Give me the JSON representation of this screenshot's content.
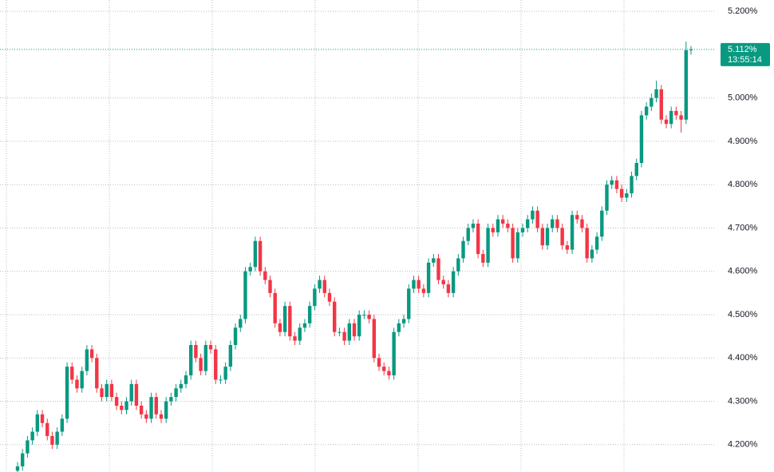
{
  "chart_data": {
    "type": "candlestick",
    "open": [
      4.14,
      4.15,
      4.18,
      4.21,
      4.23,
      4.27,
      4.25,
      4.22,
      4.2,
      4.23,
      4.26,
      4.38,
      4.35,
      4.33,
      4.37,
      4.42,
      4.4,
      4.33,
      4.31,
      4.34,
      4.31,
      4.29,
      4.28,
      4.3,
      4.34,
      4.29,
      4.27,
      4.26,
      4.31,
      4.27,
      4.26,
      4.3,
      4.31,
      4.33,
      4.34,
      4.36,
      4.43,
      4.4,
      4.37,
      4.43,
      4.42,
      4.35,
      4.35,
      4.38,
      4.43,
      4.47,
      4.49,
      4.6,
      4.61,
      4.67,
      4.6,
      4.58,
      4.55,
      4.48,
      4.46,
      4.52,
      4.45,
      4.44,
      4.47,
      4.48,
      4.52,
      4.56,
      4.58,
      4.55,
      4.53,
      4.46,
      4.46,
      4.44,
      4.48,
      4.45,
      4.5,
      4.5,
      4.49,
      4.4,
      4.38,
      4.37,
      4.36,
      4.46,
      4.48,
      4.49,
      4.56,
      4.58,
      4.56,
      4.55,
      4.62,
      4.63,
      4.58,
      4.57,
      4.55,
      4.6,
      4.63,
      4.67,
      4.7,
      4.71,
      4.64,
      4.62,
      4.7,
      4.69,
      4.72,
      4.71,
      4.7,
      4.63,
      4.69,
      4.7,
      4.72,
      4.74,
      4.7,
      4.66,
      4.7,
      4.72,
      4.7,
      4.66,
      4.65,
      4.73,
      4.72,
      4.7,
      4.63,
      4.65,
      4.68,
      4.74,
      4.8,
      4.81,
      4.79,
      4.77,
      4.78,
      4.82,
      4.85,
      4.96,
      4.98,
      5.0,
      5.02,
      4.95,
      4.94,
      4.97,
      4.96,
      4.95,
      5.11
    ],
    "high": [
      4.16,
      4.19,
      4.22,
      4.24,
      4.28,
      4.28,
      4.26,
      4.23,
      4.24,
      4.27,
      4.39,
      4.39,
      4.36,
      4.38,
      4.43,
      4.43,
      4.41,
      4.34,
      4.35,
      4.35,
      4.32,
      4.3,
      4.31,
      4.35,
      4.35,
      4.3,
      4.28,
      4.32,
      4.32,
      4.28,
      4.31,
      4.32,
      4.34,
      4.35,
      4.37,
      4.44,
      4.44,
      4.41,
      4.44,
      4.44,
      4.43,
      4.36,
      4.39,
      4.44,
      4.48,
      4.5,
      4.61,
      4.62,
      4.68,
      4.68,
      4.61,
      4.59,
      4.56,
      4.49,
      4.53,
      4.53,
      4.46,
      4.48,
      4.49,
      4.53,
      4.57,
      4.59,
      4.59,
      4.56,
      4.54,
      4.47,
      4.47,
      4.49,
      4.49,
      4.51,
      4.51,
      4.51,
      4.5,
      4.41,
      4.39,
      4.38,
      4.47,
      4.49,
      4.5,
      4.57,
      4.59,
      4.59,
      4.57,
      4.63,
      4.64,
      4.64,
      4.59,
      4.58,
      4.61,
      4.64,
      4.68,
      4.71,
      4.72,
      4.72,
      4.65,
      4.71,
      4.71,
      4.73,
      4.73,
      4.72,
      4.71,
      4.7,
      4.71,
      4.73,
      4.75,
      4.75,
      4.71,
      4.71,
      4.73,
      4.73,
      4.71,
      4.67,
      4.74,
      4.74,
      4.73,
      4.71,
      4.66,
      4.69,
      4.75,
      4.81,
      4.82,
      4.82,
      4.8,
      4.79,
      4.83,
      4.86,
      4.97,
      4.99,
      5.01,
      5.04,
      5.03,
      4.96,
      4.98,
      4.98,
      4.97,
      5.13,
      5.12
    ],
    "low": [
      4.13,
      4.14,
      4.17,
      4.2,
      4.22,
      4.24,
      4.21,
      4.19,
      4.19,
      4.22,
      4.25,
      4.34,
      4.32,
      4.32,
      4.36,
      4.39,
      4.32,
      4.3,
      4.3,
      4.3,
      4.28,
      4.27,
      4.27,
      4.29,
      4.28,
      4.26,
      4.25,
      4.25,
      4.26,
      4.25,
      4.25,
      4.29,
      4.3,
      4.32,
      4.33,
      4.35,
      4.39,
      4.36,
      4.36,
      4.41,
      4.34,
      4.34,
      4.34,
      4.37,
      4.42,
      4.46,
      4.48,
      4.59,
      4.6,
      4.59,
      4.57,
      4.54,
      4.47,
      4.45,
      4.45,
      4.44,
      4.43,
      4.43,
      4.46,
      4.47,
      4.51,
      4.55,
      4.54,
      4.52,
      4.45,
      4.45,
      4.43,
      4.43,
      4.44,
      4.44,
      4.49,
      4.48,
      4.39,
      4.37,
      4.36,
      4.35,
      4.35,
      4.45,
      4.47,
      4.48,
      4.55,
      4.55,
      4.54,
      4.54,
      4.61,
      4.57,
      4.56,
      4.54,
      4.54,
      4.59,
      4.62,
      4.66,
      4.69,
      4.63,
      4.61,
      4.61,
      4.68,
      4.68,
      4.7,
      4.69,
      4.62,
      4.62,
      4.68,
      4.69,
      4.71,
      4.69,
      4.65,
      4.65,
      4.69,
      4.69,
      4.65,
      4.64,
      4.64,
      4.71,
      4.69,
      4.62,
      4.62,
      4.64,
      4.67,
      4.73,
      4.79,
      4.78,
      4.76,
      4.76,
      4.77,
      4.81,
      4.84,
      4.95,
      4.97,
      4.99,
      4.94,
      4.93,
      4.93,
      4.95,
      4.92,
      4.94,
      5.1
    ],
    "close": [
      4.15,
      4.18,
      4.21,
      4.23,
      4.27,
      4.25,
      4.22,
      4.2,
      4.23,
      4.26,
      4.38,
      4.35,
      4.33,
      4.37,
      4.42,
      4.4,
      4.33,
      4.31,
      4.34,
      4.31,
      4.29,
      4.28,
      4.3,
      4.34,
      4.29,
      4.27,
      4.26,
      4.31,
      4.27,
      4.26,
      4.3,
      4.31,
      4.33,
      4.34,
      4.36,
      4.43,
      4.4,
      4.37,
      4.43,
      4.42,
      4.35,
      4.35,
      4.38,
      4.43,
      4.47,
      4.49,
      4.6,
      4.61,
      4.67,
      4.6,
      4.58,
      4.55,
      4.48,
      4.46,
      4.52,
      4.45,
      4.44,
      4.47,
      4.48,
      4.52,
      4.56,
      4.58,
      4.55,
      4.53,
      4.46,
      4.46,
      4.44,
      4.48,
      4.45,
      4.5,
      4.5,
      4.49,
      4.4,
      4.38,
      4.37,
      4.36,
      4.46,
      4.48,
      4.49,
      4.56,
      4.58,
      4.56,
      4.55,
      4.62,
      4.63,
      4.58,
      4.57,
      4.55,
      4.6,
      4.63,
      4.67,
      4.7,
      4.71,
      4.64,
      4.62,
      4.7,
      4.69,
      4.72,
      4.71,
      4.7,
      4.63,
      4.69,
      4.7,
      4.72,
      4.74,
      4.7,
      4.66,
      4.7,
      4.72,
      4.7,
      4.66,
      4.65,
      4.73,
      4.72,
      4.7,
      4.63,
      4.65,
      4.68,
      4.74,
      4.8,
      4.81,
      4.79,
      4.77,
      4.78,
      4.82,
      4.85,
      4.96,
      4.98,
      5.0,
      5.02,
      4.95,
      4.94,
      4.97,
      4.96,
      4.95,
      5.11,
      5.112
    ],
    "up_color": "#089981",
    "down_color": "#f23645",
    "ylim": [
      4.137,
      5.226
    ],
    "yticks": [
      {
        "value": 4.2,
        "label": "4.200%"
      },
      {
        "value": 4.3,
        "label": "4.300%"
      },
      {
        "value": 4.4,
        "label": "4.400%"
      },
      {
        "value": 4.5,
        "label": "4.500%"
      },
      {
        "value": 4.6,
        "label": "4.600%"
      },
      {
        "value": 4.7,
        "label": "4.700%"
      },
      {
        "value": 4.8,
        "label": "4.800%"
      },
      {
        "value": 4.9,
        "label": "4.900%"
      },
      {
        "value": 5.0,
        "label": "5.000%"
      },
      {
        "value": 5.2,
        "label": "5.200%"
      }
    ],
    "grid": true,
    "last_price": {
      "value": 5.112,
      "label": "5.112%"
    },
    "countdown": "13:55:14"
  }
}
